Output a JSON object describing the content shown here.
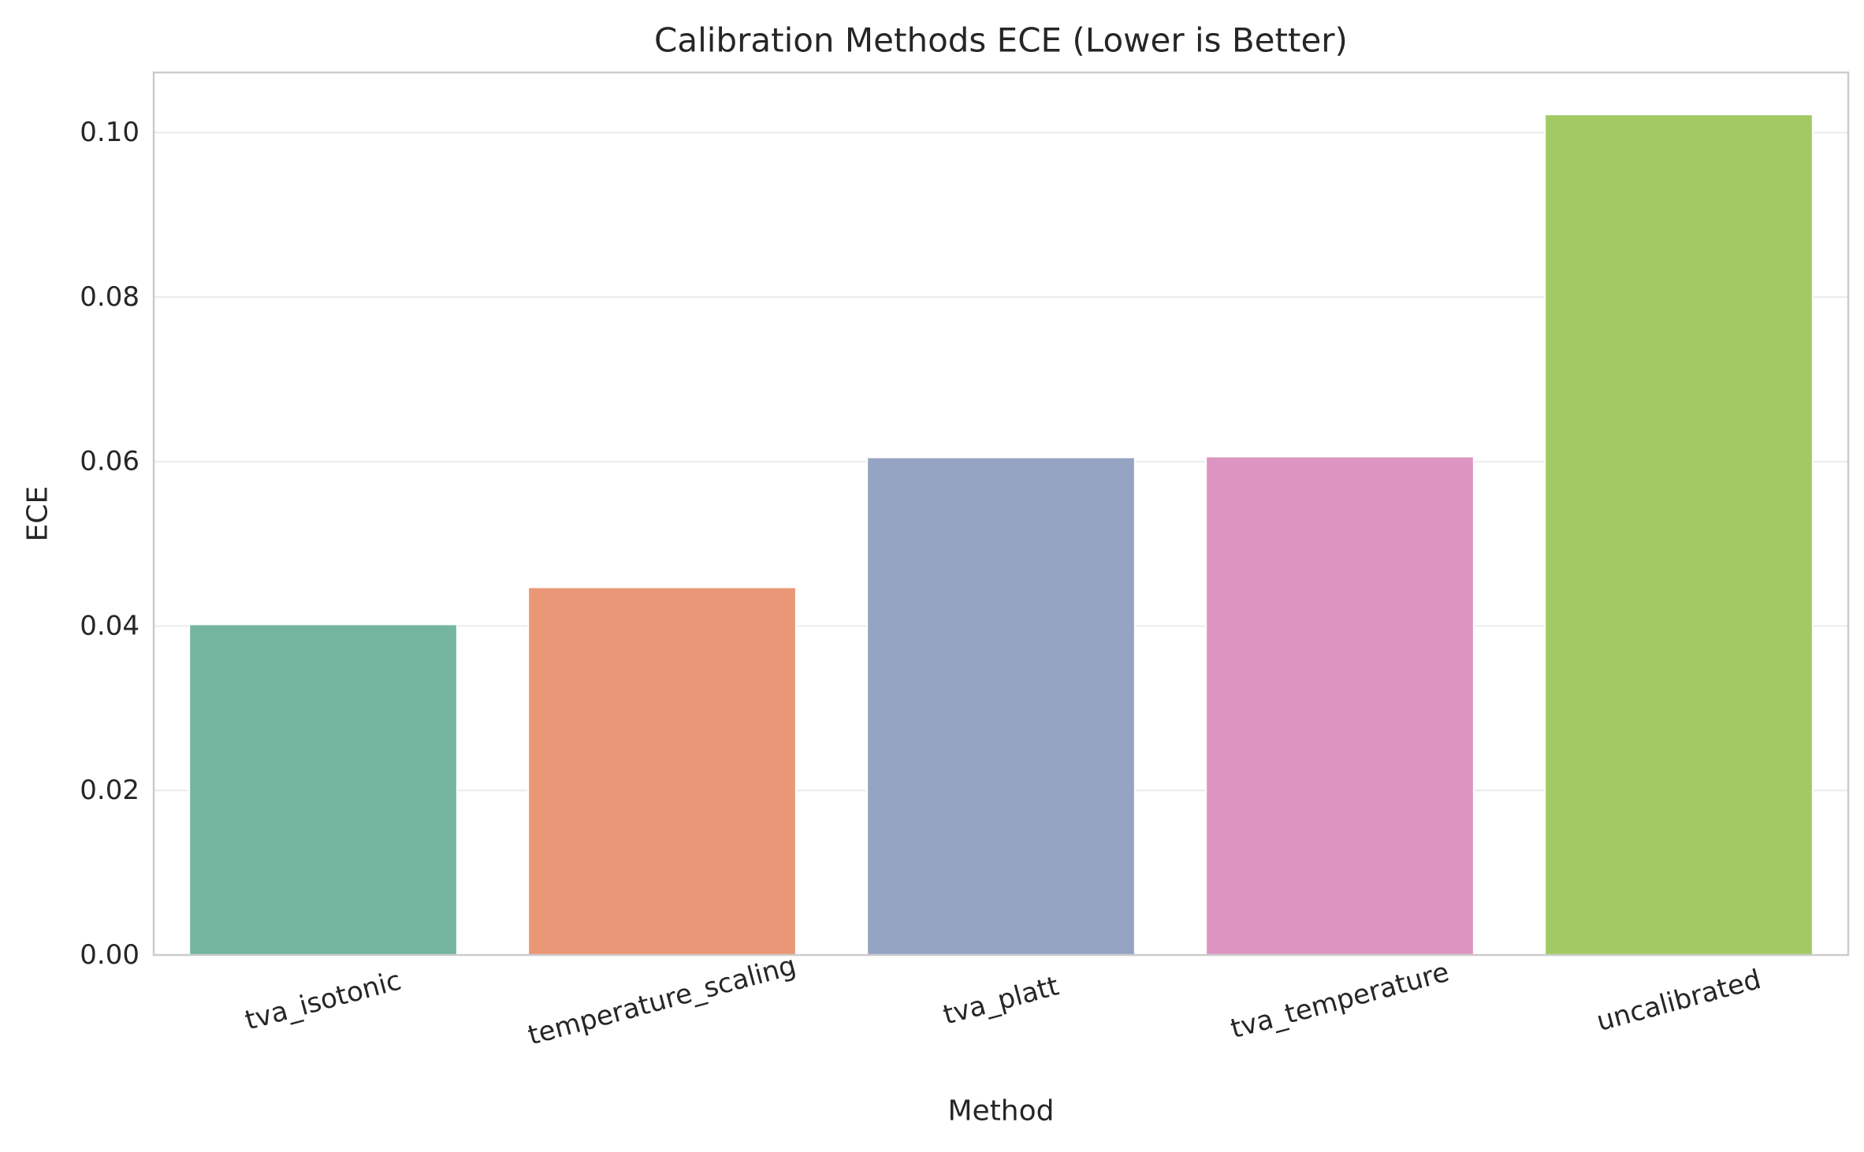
{
  "chart_data": {
    "type": "bar",
    "title": "Calibration Methods ECE (Lower is Better)",
    "xlabel": "Method",
    "ylabel": "ECE",
    "categories": [
      "tva_isotonic",
      "temperature_scaling",
      "tva_platt",
      "tva_temperature",
      "uncalibrated"
    ],
    "values": [
      0.0402,
      0.0447,
      0.0605,
      0.0606,
      0.1022
    ],
    "colors": [
      "#75b6a0",
      "#e99776",
      "#95a4c3",
      "#dc95c0",
      "#a3c965"
    ],
    "ylim": [
      0,
      0.1073
    ],
    "yticks": [
      0.0,
      0.02,
      0.04,
      0.06,
      0.08,
      0.1
    ],
    "ytick_labels": [
      "0.00",
      "0.02",
      "0.04",
      "0.06",
      "0.08",
      "0.10"
    ],
    "grid": "y",
    "legend": "none",
    "xtick_rotation_deg": -15,
    "frame_color": "#cccccc",
    "grid_color": "#ebebeb",
    "text_color": "#262626"
  }
}
